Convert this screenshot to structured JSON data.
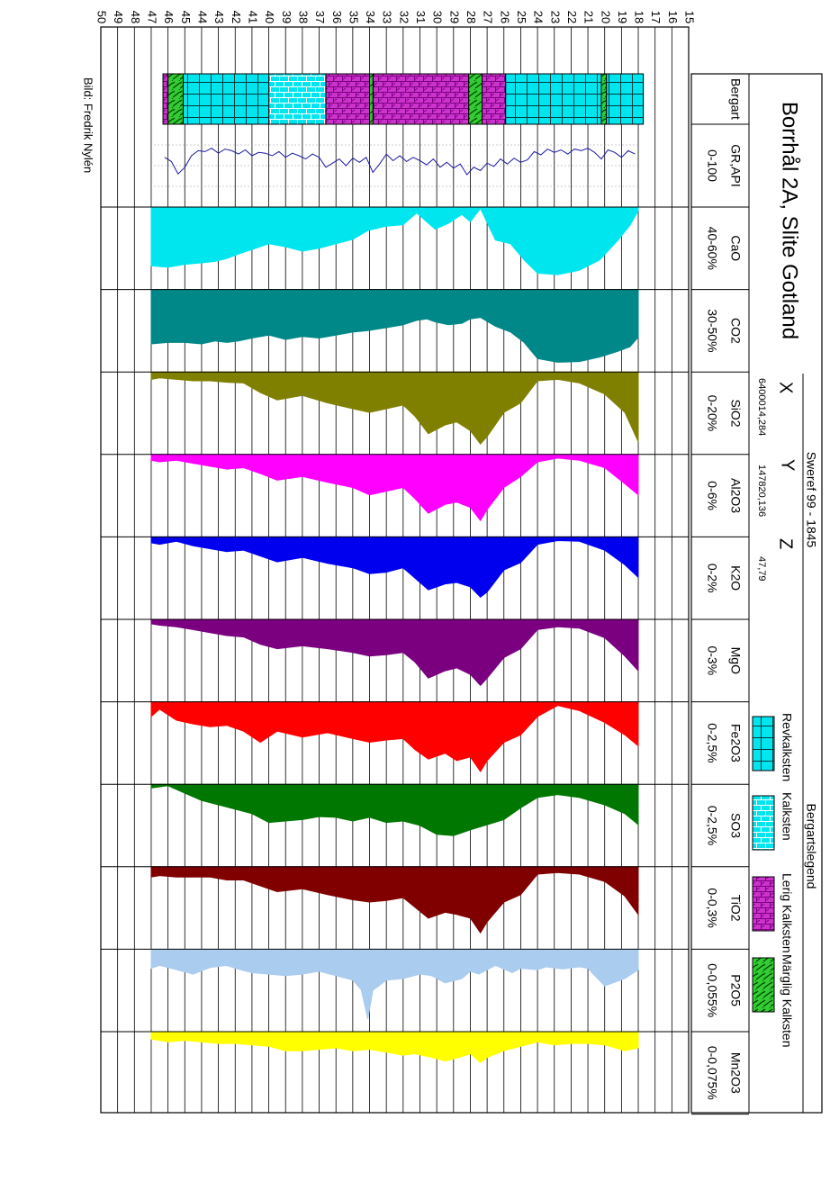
{
  "chart_data": {
    "type": "area",
    "title": "Borrhål 2A, Slite Gotland",
    "credit": "Bild: Fredrik Nylén",
    "depth_axis": {
      "range": [
        15,
        50
      ],
      "tick_labels": [
        "15",
        "16",
        "17",
        "18",
        "19",
        "20",
        "21",
        "22",
        "23",
        "24",
        "25",
        "26",
        "27",
        "28",
        "29",
        "30",
        "31",
        "32",
        "33",
        "34",
        "35",
        "36",
        "37",
        "38",
        "39",
        "40",
        "41",
        "42",
        "43",
        "44",
        "45",
        "46",
        "47",
        "48",
        "49",
        "50"
      ]
    },
    "coordinates": {
      "system": "Sweref 99 - 1845",
      "x_label": "X",
      "x_value": "6400014,284",
      "y_label": "Y",
      "y_value": "147820,136",
      "z_label": "Z",
      "z_value": "47,79"
    },
    "lithology": {
      "header": "Bergart",
      "legend_title": "Bergartslegend",
      "types": [
        {
          "key": "rev",
          "name": "Revkalksten",
          "color": "#00e5ee"
        },
        {
          "key": "kalk",
          "name": "Kalksten",
          "color": "#00e5ee"
        },
        {
          "key": "lerig",
          "name": "Lerig Kalksten",
          "color": "#cc33cc"
        },
        {
          "key": "margel",
          "name": "Märglig Kalksten",
          "color": "#33cc33"
        }
      ],
      "intervals": [
        {
          "from": 17.7,
          "to": 19.9,
          "type": "rev"
        },
        {
          "from": 19.9,
          "to": 20.2,
          "type": "margel"
        },
        {
          "from": 20.2,
          "to": 25.9,
          "type": "rev"
        },
        {
          "from": 25.9,
          "to": 27.3,
          "type": "lerig"
        },
        {
          "from": 27.3,
          "to": 28.1,
          "type": "margel"
        },
        {
          "from": 28.1,
          "to": 33.8,
          "type": "lerig"
        },
        {
          "from": 33.8,
          "to": 34.0,
          "type": "margel"
        },
        {
          "from": 34.0,
          "to": 36.6,
          "type": "lerig"
        },
        {
          "from": 36.6,
          "to": 40.0,
          "type": "kalk"
        },
        {
          "from": 40.0,
          "to": 45.1,
          "type": "rev"
        },
        {
          "from": 45.1,
          "to": 46.0,
          "type": "margel"
        },
        {
          "from": 46.0,
          "to": 46.3,
          "type": "lerig"
        }
      ]
    },
    "gamma": {
      "name": "GR,API",
      "range_label": "0-100",
      "color": "#1a1aa0",
      "depth": [
        18.2,
        18.6,
        19.0,
        19.4,
        19.8,
        20.2,
        20.6,
        21.0,
        21.4,
        21.8,
        22.2,
        22.6,
        23.0,
        23.4,
        23.8,
        24.2,
        24.6,
        25.0,
        25.4,
        25.8,
        26.2,
        26.6,
        27.0,
        27.4,
        27.8,
        28.2,
        28.6,
        29.0,
        29.4,
        29.8,
        30.2,
        30.6,
        31.0,
        31.4,
        31.8,
        32.2,
        32.6,
        33.0,
        33.4,
        33.8,
        34.2,
        34.6,
        35.0,
        35.4,
        35.8,
        36.2,
        36.6,
        37.0,
        37.4,
        37.8,
        38.2,
        38.6,
        39.0,
        39.4,
        39.8,
        40.2,
        40.6,
        41.0,
        41.4,
        41.8,
        42.2,
        42.6,
        43.0,
        43.4,
        43.8,
        44.2,
        44.6,
        45.0,
        45.4,
        45.8,
        46.2
      ],
      "value": [
        36,
        32,
        40,
        34,
        31,
        42,
        34,
        29,
        32,
        30,
        36,
        31,
        34,
        30,
        37,
        33,
        43,
        46,
        41,
        48,
        42,
        51,
        47,
        56,
        52,
        61,
        48,
        53,
        46,
        52,
        42,
        49,
        44,
        40,
        45,
        38,
        44,
        36,
        48,
        58,
        40,
        46,
        41,
        50,
        42,
        47,
        52,
        40,
        36,
        42,
        38,
        35,
        40,
        33,
        38,
        35,
        34,
        38,
        31,
        36,
        32,
        30,
        35,
        29,
        33,
        32,
        38,
        52,
        60,
        45,
        40
      ]
    },
    "series": [
      {
        "name": "CaO",
        "range_label": "40-60%",
        "color": "#00e6ee",
        "depth": [
          18.0,
          18.5,
          19.2,
          20.3,
          21.5,
          22.8,
          24.0,
          24.8,
          25.6,
          26.5,
          27.4,
          28.0,
          28.5,
          29.3,
          30.1,
          30.6,
          31.2,
          32.0,
          33.0,
          34.1,
          35.0,
          36.0,
          37.0,
          38.0,
          39.0,
          40.0,
          41.0,
          41.8,
          42.5,
          43.2,
          44.0,
          45.0,
          46.0,
          47.0
        ],
        "value": [
          0.05,
          0.25,
          0.45,
          0.72,
          0.86,
          0.92,
          0.9,
          0.72,
          0.5,
          0.45,
          0.02,
          0.2,
          0.1,
          0.22,
          0.3,
          0.2,
          0.08,
          0.24,
          0.26,
          0.32,
          0.44,
          0.5,
          0.56,
          0.6,
          0.54,
          0.5,
          0.58,
          0.64,
          0.7,
          0.74,
          0.76,
          0.78,
          0.82,
          0.8
        ]
      },
      {
        "name": "CO2",
        "range_label": "30-50%",
        "color": "#008787",
        "depth": [
          18.0,
          18.5,
          19.2,
          20.3,
          21.5,
          22.8,
          24.0,
          24.8,
          25.6,
          26.5,
          27.4,
          28.0,
          28.5,
          29.3,
          30.1,
          30.6,
          31.2,
          32.0,
          33.0,
          34.1,
          35.0,
          36.0,
          37.0,
          38.0,
          39.0,
          40.0,
          41.0,
          41.8,
          42.5,
          43.2,
          44.0,
          45.0,
          46.0,
          47.0
        ],
        "value": [
          0.65,
          0.78,
          0.84,
          0.92,
          0.98,
          0.99,
          0.94,
          0.72,
          0.58,
          0.5,
          0.38,
          0.4,
          0.46,
          0.48,
          0.44,
          0.4,
          0.42,
          0.48,
          0.52,
          0.56,
          0.58,
          0.62,
          0.66,
          0.64,
          0.68,
          0.62,
          0.66,
          0.7,
          0.72,
          0.7,
          0.74,
          0.72,
          0.72,
          0.74
        ]
      },
      {
        "name": "SiO2",
        "range_label": "0-20%",
        "color": "#808000",
        "depth": [
          18.0,
          18.8,
          20.0,
          21.5,
          22.8,
          24.0,
          25.0,
          26.0,
          27.0,
          27.4,
          28.0,
          28.8,
          29.5,
          30.5,
          31.3,
          32.0,
          33.0,
          34.0,
          35.0,
          36.5,
          38.0,
          39.5,
          40.5,
          41.5,
          42.5,
          43.5,
          44.5,
          45.5,
          46.5,
          47.0
        ],
        "value": [
          0.95,
          0.55,
          0.3,
          0.15,
          0.1,
          0.12,
          0.42,
          0.55,
          0.88,
          0.98,
          0.8,
          0.68,
          0.72,
          0.84,
          0.6,
          0.45,
          0.5,
          0.55,
          0.5,
          0.42,
          0.32,
          0.38,
          0.28,
          0.15,
          0.14,
          0.12,
          0.12,
          0.1,
          0.08,
          0.1
        ]
      },
      {
        "name": "Al2O3",
        "range_label": "0-6%",
        "color": "#ff00ff",
        "depth": [
          18.0,
          18.8,
          20.0,
          21.5,
          22.8,
          24.0,
          25.0,
          26.0,
          27.0,
          27.4,
          28.0,
          28.8,
          29.5,
          30.5,
          31.3,
          32.0,
          33.0,
          34.0,
          35.0,
          36.5,
          38.0,
          39.5,
          40.5,
          41.5,
          42.5,
          43.5,
          44.5,
          45.5,
          46.5,
          47.0
        ],
        "value": [
          0.55,
          0.4,
          0.18,
          0.08,
          0.05,
          0.1,
          0.3,
          0.45,
          0.75,
          0.9,
          0.72,
          0.65,
          0.68,
          0.8,
          0.6,
          0.45,
          0.5,
          0.55,
          0.45,
          0.38,
          0.3,
          0.35,
          0.26,
          0.18,
          0.2,
          0.16,
          0.12,
          0.08,
          0.1,
          0.08
        ]
      },
      {
        "name": "K2O",
        "range_label": "0-2%",
        "color": "#0000ee",
        "depth": [
          18.0,
          18.8,
          20.0,
          21.5,
          22.8,
          24.0,
          25.0,
          26.0,
          27.0,
          27.4,
          28.0,
          28.8,
          29.5,
          30.5,
          31.3,
          32.0,
          33.0,
          34.0,
          35.0,
          36.5,
          38.0,
          39.5,
          40.5,
          41.5,
          42.5,
          43.5,
          44.5,
          45.5,
          46.5,
          47.0
        ],
        "value": [
          0.55,
          0.38,
          0.18,
          0.06,
          0.05,
          0.1,
          0.35,
          0.45,
          0.75,
          0.82,
          0.68,
          0.62,
          0.64,
          0.72,
          0.56,
          0.42,
          0.48,
          0.5,
          0.42,
          0.36,
          0.28,
          0.34,
          0.26,
          0.18,
          0.2,
          0.16,
          0.12,
          0.06,
          0.1,
          0.08
        ]
      },
      {
        "name": "MgO",
        "range_label": "0-3%",
        "color": "#7a0080",
        "depth": [
          18.0,
          18.8,
          20.0,
          21.5,
          22.8,
          24.0,
          25.0,
          26.0,
          27.0,
          27.4,
          28.0,
          28.8,
          29.5,
          30.5,
          31.3,
          32.0,
          33.0,
          34.0,
          35.0,
          36.5,
          38.0,
          39.5,
          40.5,
          41.5,
          42.5,
          43.5,
          44.5,
          45.5,
          46.5,
          47.0
        ],
        "value": [
          0.7,
          0.5,
          0.25,
          0.12,
          0.1,
          0.14,
          0.4,
          0.52,
          0.8,
          0.9,
          0.75,
          0.66,
          0.7,
          0.8,
          0.58,
          0.45,
          0.48,
          0.5,
          0.45,
          0.4,
          0.36,
          0.4,
          0.34,
          0.24,
          0.22,
          0.18,
          0.14,
          0.1,
          0.08,
          0.06
        ]
      },
      {
        "name": "Fe2O3",
        "range_label": "0-2,5%",
        "color": "#ff0000",
        "depth": [
          18.0,
          18.8,
          20.0,
          21.5,
          22.8,
          24.0,
          25.0,
          26.0,
          27.0,
          27.4,
          28.0,
          28.8,
          29.5,
          30.5,
          31.3,
          32.0,
          33.0,
          34.0,
          35.0,
          36.5,
          38.0,
          39.5,
          40.5,
          41.5,
          42.5,
          43.5,
          44.5,
          45.5,
          46.5,
          47.0
        ],
        "value": [
          0.6,
          0.45,
          0.28,
          0.12,
          0.05,
          0.2,
          0.45,
          0.55,
          0.8,
          0.95,
          0.75,
          0.8,
          0.7,
          0.78,
          0.65,
          0.5,
          0.52,
          0.55,
          0.5,
          0.42,
          0.48,
          0.4,
          0.55,
          0.4,
          0.32,
          0.34,
          0.3,
          0.25,
          0.1,
          0.2
        ]
      },
      {
        "name": "SO3",
        "range_label": "0-2,5%",
        "color": "#007700",
        "depth": [
          18.0,
          18.8,
          20.0,
          21.5,
          22.8,
          24.0,
          25.0,
          26.0,
          27.0,
          28.0,
          29.0,
          30.0,
          31.0,
          32.0,
          33.0,
          34.0,
          35.0,
          36.0,
          37.0,
          38.0,
          39.0,
          40.0,
          41.0,
          42.0,
          43.0,
          44.0,
          45.0,
          46.0,
          47.0
        ],
        "value": [
          0.55,
          0.4,
          0.28,
          0.18,
          0.14,
          0.18,
          0.32,
          0.48,
          0.55,
          0.62,
          0.7,
          0.68,
          0.56,
          0.5,
          0.52,
          0.45,
          0.5,
          0.45,
          0.44,
          0.48,
          0.5,
          0.52,
          0.4,
          0.34,
          0.28,
          0.22,
          0.12,
          0.02,
          0.05
        ]
      },
      {
        "name": "TiO2",
        "range_label": "0-0,3%",
        "color": "#800000",
        "depth": [
          18.0,
          18.8,
          20.0,
          21.5,
          22.8,
          24.0,
          25.0,
          26.0,
          27.0,
          27.4,
          28.0,
          28.8,
          29.5,
          30.5,
          31.3,
          32.0,
          33.0,
          34.0,
          35.0,
          36.5,
          38.0,
          39.5,
          40.5,
          41.5,
          42.5,
          43.5,
          44.5,
          45.5,
          46.5,
          47.0
        ],
        "value": [
          0.65,
          0.4,
          0.2,
          0.1,
          0.08,
          0.1,
          0.38,
          0.48,
          0.75,
          0.9,
          0.7,
          0.65,
          0.62,
          0.7,
          0.55,
          0.42,
          0.46,
          0.48,
          0.45,
          0.38,
          0.3,
          0.34,
          0.26,
          0.18,
          0.18,
          0.14,
          0.14,
          0.14,
          0.12,
          0.14
        ]
      },
      {
        "name": "P2O5",
        "range_label": "0-0,055%",
        "color": "#aaccee",
        "depth": [
          18.0,
          18.8,
          20.0,
          21.0,
          21.5,
          22.5,
          23.5,
          24.0,
          25.0,
          25.5,
          26.5,
          27.5,
          28.0,
          28.5,
          29.5,
          30.3,
          31.0,
          32.0,
          33.0,
          33.8,
          34.1,
          34.5,
          35.0,
          36.0,
          37.0,
          38.0,
          39.0,
          40.0,
          41.0,
          42.0,
          42.5,
          43.5,
          44.5,
          45.5,
          46.5,
          47.0
        ],
        "value": [
          0.28,
          0.4,
          0.5,
          0.26,
          0.24,
          0.27,
          0.24,
          0.28,
          0.26,
          0.32,
          0.22,
          0.34,
          0.3,
          0.4,
          0.46,
          0.36,
          0.34,
          0.4,
          0.42,
          0.56,
          0.95,
          0.55,
          0.42,
          0.36,
          0.3,
          0.34,
          0.36,
          0.34,
          0.32,
          0.26,
          0.22,
          0.25,
          0.34,
          0.28,
          0.22,
          0.26
        ]
      },
      {
        "name": "Mn2O3",
        "range_label": "0-0,075%",
        "color": "#ffff00",
        "depth": [
          18.0,
          18.8,
          20.0,
          21.0,
          22.0,
          23.0,
          24.0,
          25.0,
          26.0,
          27.0,
          27.4,
          28.0,
          28.8,
          29.5,
          30.5,
          31.3,
          32.0,
          33.0,
          34.0,
          35.0,
          36.0,
          37.0,
          38.0,
          39.0,
          40.0,
          41.0,
          42.0,
          43.0,
          44.0,
          45.0,
          46.0,
          47.0
        ],
        "value": [
          0.22,
          0.26,
          0.18,
          0.16,
          0.16,
          0.18,
          0.14,
          0.2,
          0.26,
          0.35,
          0.42,
          0.3,
          0.36,
          0.4,
          0.34,
          0.3,
          0.32,
          0.28,
          0.24,
          0.26,
          0.22,
          0.24,
          0.26,
          0.26,
          0.2,
          0.18,
          0.16,
          0.16,
          0.14,
          0.12,
          0.14,
          0.1
        ]
      }
    ]
  }
}
